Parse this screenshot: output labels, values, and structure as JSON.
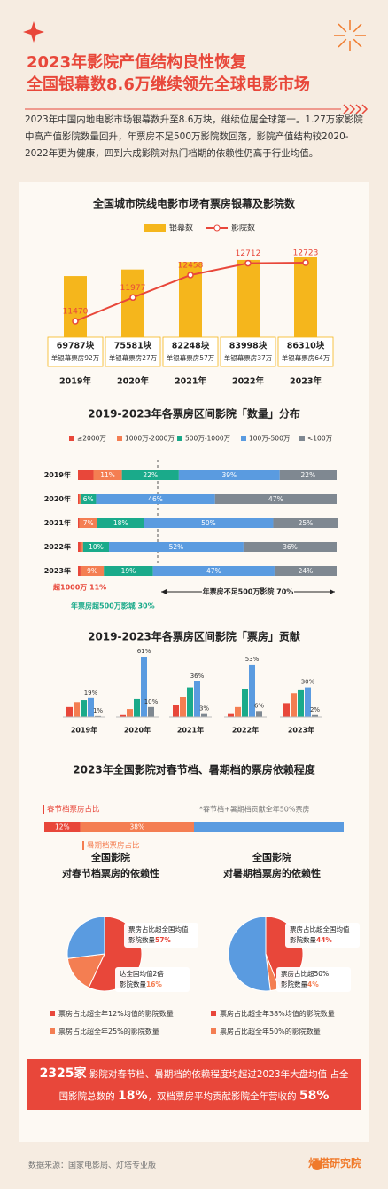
{
  "header": {
    "title_lines": [
      "2023年影院产值结构良性恢复",
      "全国银幕数8.6万继续领先全球电影市场"
    ]
  },
  "intro": "2023年中国内地电影市场银幕数升至8.6万块，继续位居全球第一。1.27万家影院中高产值影院数量回升，年票房不足500万影院数回落，影院产值结构较2020-2022年更为健康，四到六成影院对热门档期的依赖性仍高于行业均值。",
  "chart_data": [
    {
      "type": "bar",
      "title": "全国城市院线电影市场有票房银幕及影院数",
      "categories": [
        "2019年",
        "2020年",
        "2021年",
        "2022年",
        "2023年"
      ],
      "series": [
        {
          "name": "银幕数",
          "color": "#f5b61c",
          "values": [
            69787,
            75581,
            82248,
            83998,
            86310
          ],
          "value_labels": [
            "69787块",
            "75581块",
            "82248块",
            "83998块",
            "86310块"
          ]
        },
        {
          "name": "影院数",
          "type": "line",
          "axis": "y2",
          "color": "#e8473a",
          "values": [
            11470,
            11977,
            12458,
            12712,
            12723
          ]
        }
      ],
      "notes": [
        "单银幕票房92万",
        "单银幕票房27万",
        "单银幕票房57万",
        "单银幕票房37万",
        "单银幕票房64万"
      ]
    },
    {
      "type": "stacked_bar",
      "orientation": "horizontal",
      "title": "2019-2023年各票房区间影院「数量」分布",
      "categories": [
        "2019年",
        "2020年",
        "2021年",
        "2022年",
        "2023年"
      ],
      "xlim": [
        0,
        100
      ],
      "series": [
        {
          "name": "≥2000万",
          "color": "#e8473a",
          "values": [
            6,
            0.5,
            0.5,
            1,
            1
          ],
          "value_labels": [
            null,
            null,
            null,
            null,
            null
          ]
        },
        {
          "name": "1000万-2000万",
          "color": "#f47e52",
          "values": [
            11,
            0.5,
            7,
            1,
            9
          ],
          "value_labels": [
            "11%",
            null,
            "7%",
            null,
            "9%"
          ]
        },
        {
          "name": "500万-1000万",
          "color": "#1aaa8a",
          "values": [
            22,
            6,
            18,
            10,
            19
          ],
          "value_labels": [
            "22%",
            "6%",
            "18%",
            "10%",
            "19%"
          ]
        },
        {
          "name": "100万-500万",
          "color": "#5a9be0",
          "values": [
            39,
            46,
            50,
            52,
            47
          ],
          "value_labels": [
            "39%",
            "46%",
            "50%",
            "52%",
            "47%"
          ]
        },
        {
          "name": "<100万",
          "color": "#7f8891",
          "values": [
            22,
            47,
            25,
            36,
            24
          ],
          "value_labels": [
            "22%",
            "47%",
            "25%",
            "36%",
            "24%"
          ]
        }
      ],
      "annotations": [
        "超1000万 11%",
        "年票房超500万影城 30%",
        "年票房不足500万影院 70%"
      ]
    },
    {
      "type": "grouped_bar",
      "title": "2019-2023年各票房区间影院「票房」贡献",
      "categories": [
        "2019年",
        "2020年",
        "2021年",
        "2022年",
        "2023年"
      ],
      "series": [
        {
          "name": "≥2000万",
          "color": "#e8473a",
          "values": [
            10,
            2,
            12,
            3,
            14
          ],
          "value_labels": [
            null,
            null,
            null,
            null,
            null
          ]
        },
        {
          "name": "1000万-2000万",
          "color": "#f47e52",
          "values": [
            15,
            8,
            20,
            10,
            24
          ],
          "value_labels": [
            null,
            null,
            null,
            null,
            null
          ]
        },
        {
          "name": "500万-1000万",
          "color": "#1aaa8a",
          "values": [
            17,
            18,
            30,
            28,
            27
          ],
          "value_labels": [
            null,
            null,
            null,
            null,
            null
          ]
        },
        {
          "name": "100万-500万",
          "color": "#5a9be0",
          "values": [
            19,
            61,
            36,
            53,
            30
          ],
          "value_labels": [
            "19%",
            "61%",
            "36%",
            "53%",
            "30%"
          ]
        },
        {
          "name": "<100万",
          "color": "#7f8891",
          "values": [
            1,
            10,
            3,
            6,
            2
          ],
          "value_labels": [
            "1%",
            "10%",
            "3%",
            "6%",
            "2%"
          ]
        }
      ]
    },
    {
      "type": "stacked_bar",
      "orientation": "horizontal",
      "title": "2023年全国影院对春节档、暑期档的票房依赖程度",
      "categories": [
        null
      ],
      "xlim": [
        0,
        100
      ],
      "note": "*春节档+暑期档贡献全年50%票房",
      "series": [
        {
          "name": "春节档票房占比",
          "color": "#e8473a",
          "values": [
            12
          ],
          "value_labels": [
            "12%"
          ]
        },
        {
          "name": "暑期档票房占比",
          "color": "#f47e52",
          "values": [
            38
          ],
          "value_labels": [
            "38%"
          ]
        },
        {
          "color": "#5a9be0",
          "values": [
            50
          ]
        }
      ]
    },
    {
      "type": "pie",
      "title": [
        "全国影院",
        "对春节档票房的依赖性"
      ],
      "slices": [
        {
          "color": "#e8473a",
          "value": 57,
          "value_label": "57%",
          "annotation": [
            "票房占比超全国均值",
            "影院数量"
          ],
          "legend": "票房占比超全年12%均值的影院数量"
        },
        {
          "color": "#f47e52",
          "value": 16,
          "value_label": "16%",
          "annotation": [
            "达全国均值2倍",
            "影院数量"
          ],
          "legend": "票房占比超全年25%的影院数量"
        },
        {
          "color": "#5a9be0",
          "value": 27
        }
      ]
    },
    {
      "type": "pie",
      "title": [
        "全国影院",
        "对暑期档票房的依赖性"
      ],
      "slices": [
        {
          "color": "#e8473a",
          "value": 44,
          "value_label": "44%",
          "annotation": [
            "票房占比超全国均值",
            "影院数量"
          ],
          "legend": "票房占比超全年38%均值的影院数量"
        },
        {
          "color": "#f47e52",
          "value": 4,
          "value_label": "4%",
          "annotation": [
            "票房占比超50%",
            "影院数量"
          ],
          "legend": "票房占比超全年50%的影院数量"
        },
        {
          "color": "#5a9be0",
          "value": 52
        }
      ]
    }
  ],
  "callout": {
    "parts": [
      "2325家",
      " 影院对春节档、暑期档的依赖程度均超过2023年大盘均值 ",
      "占全国影院总数的 ",
      "18%",
      "，双档票房平均贡献影院全年营收的 ",
      "58%"
    ]
  },
  "footer": {
    "source": "数据来源：国家电影局、灯塔专业版",
    "brand": "灯塔研究院"
  }
}
